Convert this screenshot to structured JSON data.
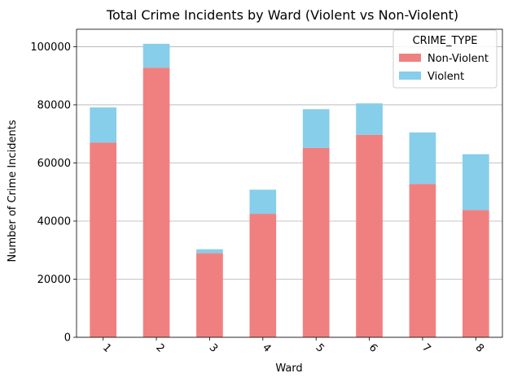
{
  "chart_data": {
    "type": "bar",
    "stacked": true,
    "title": "Total Crime Incidents by Ward (Violent vs Non-Violent)",
    "xlabel": "Ward",
    "ylabel": "Number of Crime Incidents",
    "categories": [
      "1",
      "2",
      "3",
      "4",
      "5",
      "6",
      "7",
      "8"
    ],
    "series": [
      {
        "name": "Non-Violent",
        "color": "#f08080",
        "values": [
          67000,
          92800,
          29000,
          42500,
          65200,
          69700,
          52800,
          43800
        ]
      },
      {
        "name": "Violent",
        "color": "#87ceeb",
        "values": [
          12100,
          8200,
          1300,
          8300,
          13300,
          10800,
          17700,
          19200
        ]
      }
    ],
    "ylim": [
      0,
      106000
    ],
    "yticks": [
      0,
      20000,
      40000,
      60000,
      80000,
      100000
    ],
    "grid": "y",
    "legend": {
      "title": "CRIME_TYPE",
      "placement": "top-right"
    },
    "x_tick_rotation": 45
  }
}
